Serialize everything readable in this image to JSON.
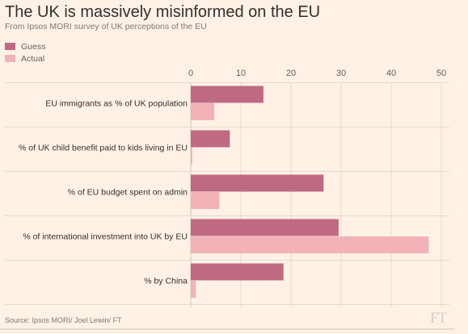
{
  "header": {
    "title": "The UK is massively misinformed on the EU",
    "subtitle": "From Ipsos MORI survey of UK perceptions of the EU"
  },
  "legend": {
    "items": [
      {
        "label": "Guess",
        "color": "#bf6a82"
      },
      {
        "label": "Actual",
        "color": "#f2b2b8"
      }
    ]
  },
  "footer": {
    "source": "Source: Ipsos MORI/ Joel Lewin/ FT",
    "logo": "FT"
  },
  "chart_data": {
    "type": "bar",
    "orientation": "horizontal",
    "categories": [
      "EU immigrants as % of UK population",
      "% of UK child benefit paid to kids living in EU",
      "% of EU budget spent on admin",
      "% of international investment into UK by EU",
      "% by China"
    ],
    "series": [
      {
        "name": "Guess",
        "values": [
          14.5,
          7.8,
          26.5,
          29.5,
          18.5
        ],
        "color": "#bf6a82"
      },
      {
        "name": "Actual",
        "values": [
          4.7,
          0.3,
          5.7,
          47.5,
          1.0
        ],
        "color": "#f2b2b8"
      }
    ],
    "xlim": [
      0,
      50
    ],
    "xticks": [
      "0",
      "10",
      "20",
      "30",
      "40",
      "50"
    ],
    "grid": true,
    "legend_position": "top-left",
    "title": "The UK is massively misinformed on the EU",
    "xlabel": "",
    "ylabel": ""
  }
}
